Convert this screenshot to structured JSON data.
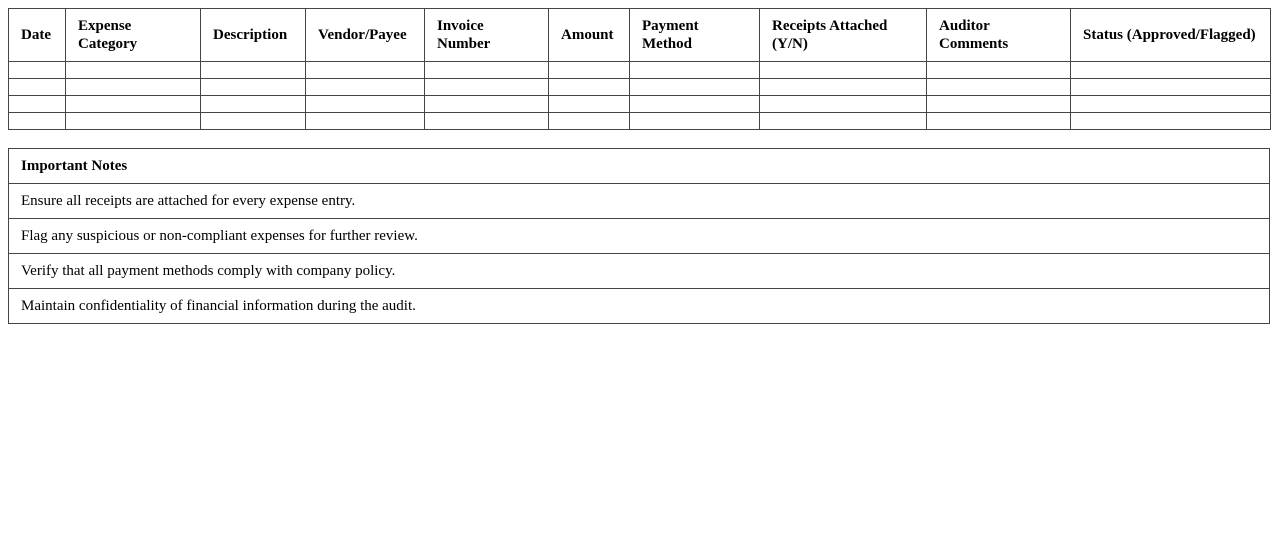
{
  "audit_table": {
    "headers": [
      "Date",
      "Expense Category",
      "Description",
      "Vendor/Payee",
      "Invoice Number",
      "Amount",
      "Payment Method",
      "Receipts Attached (Y/N)",
      "Auditor Comments",
      "Status (Approved/Flagged)"
    ],
    "empty_row_count": 4
  },
  "notes": {
    "title": "Important Notes",
    "items": [
      "Ensure all receipts are attached for every expense entry.",
      "Flag any suspicious or non-compliant expenses for further review.",
      "Verify that all payment methods comply with company policy.",
      "Maintain confidentiality of financial information during the audit."
    ]
  }
}
